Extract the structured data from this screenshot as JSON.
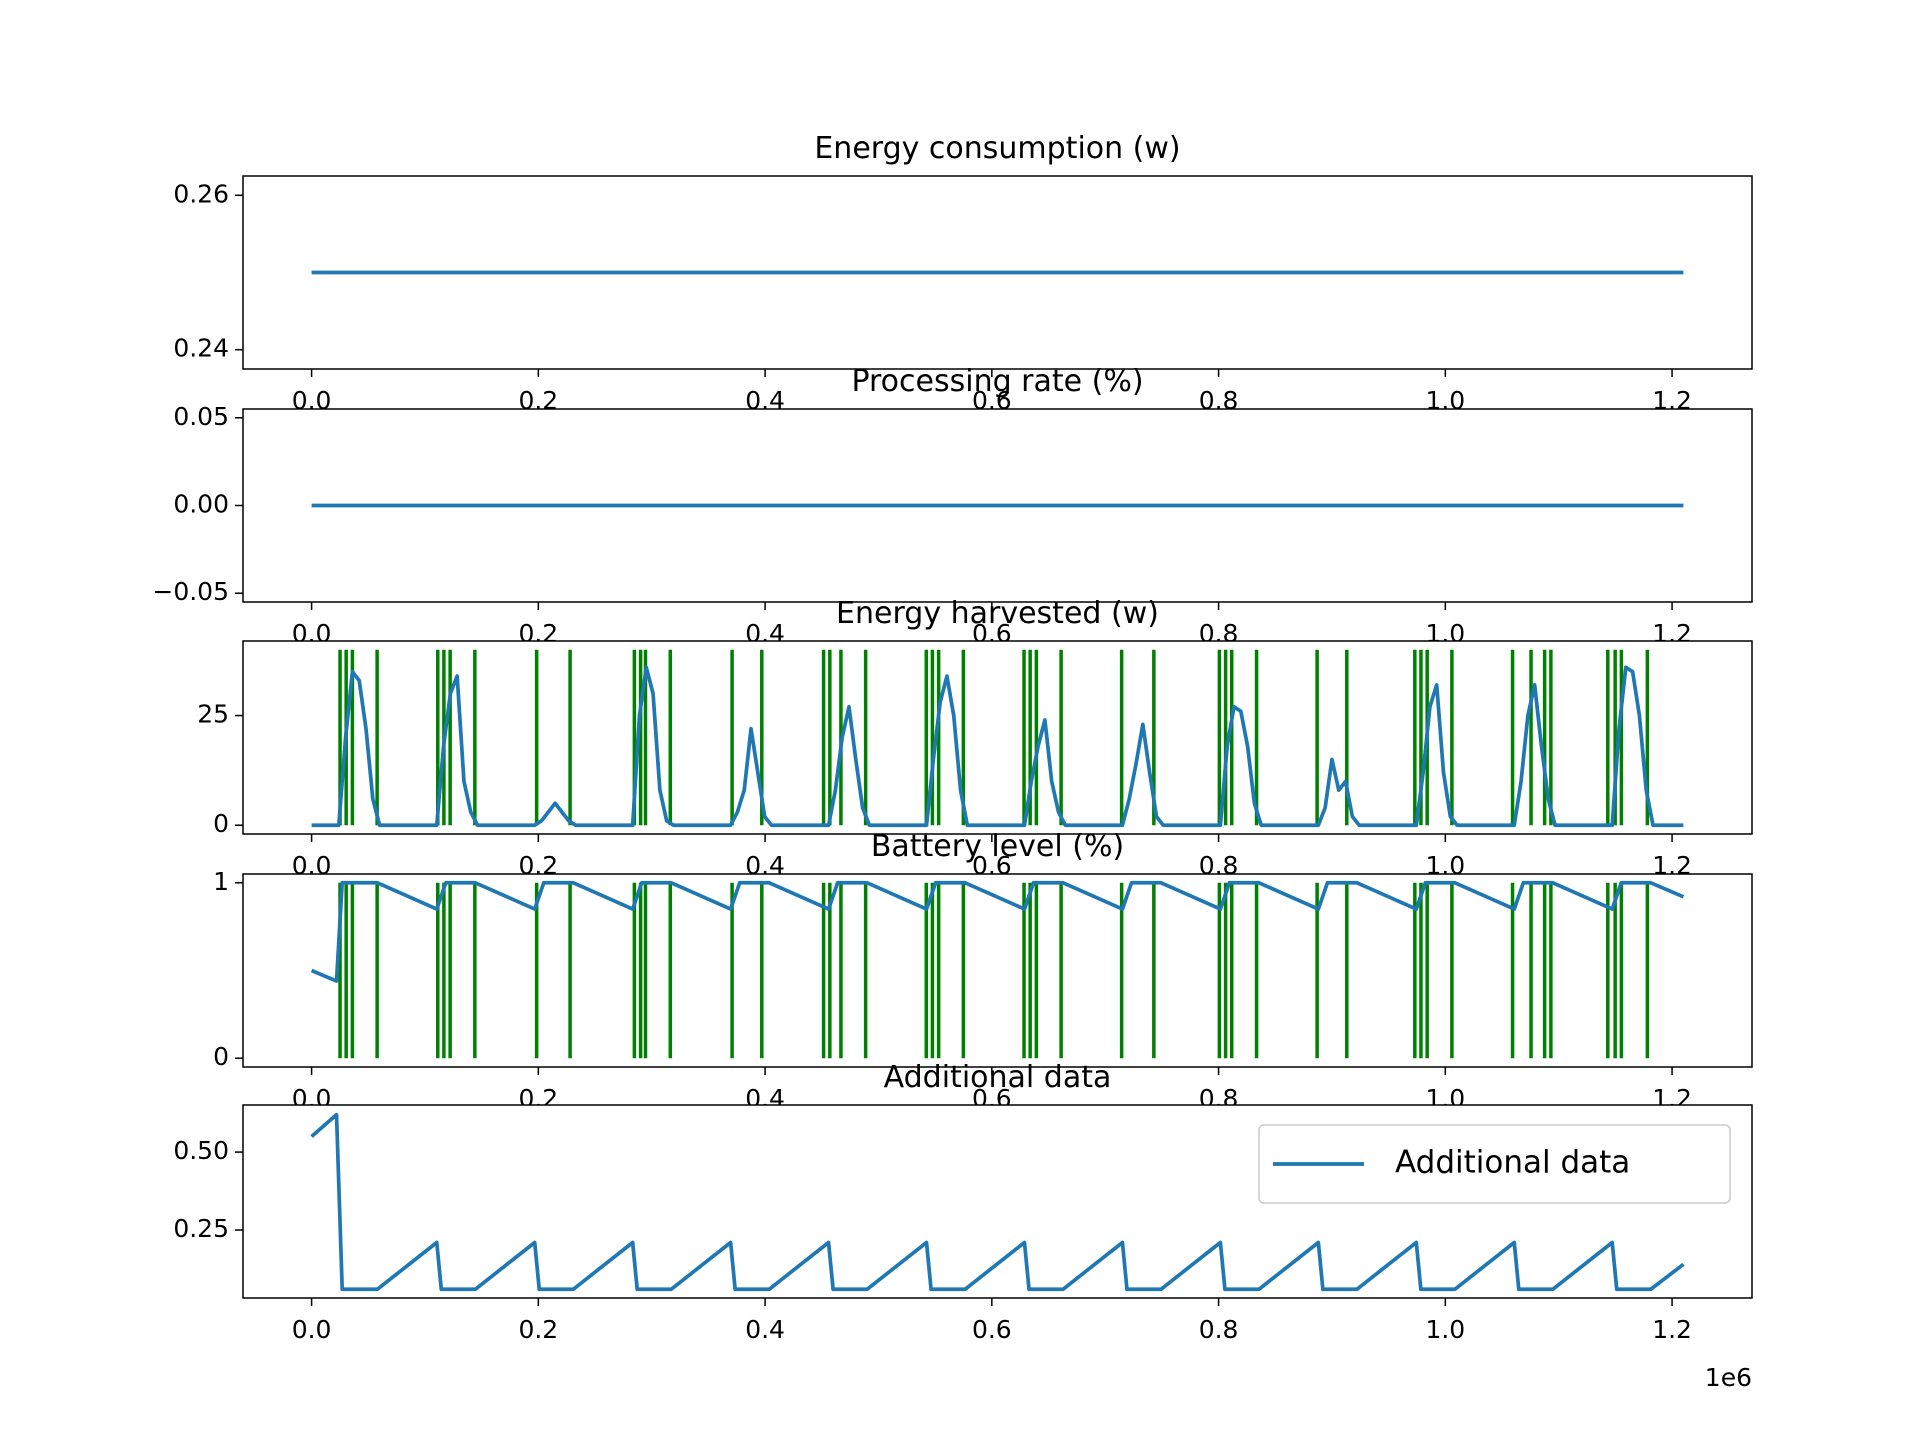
{
  "chart_data": [
    {
      "type": "line",
      "title": "Energy consumption (w)",
      "x": [
        0,
        1210000
      ],
      "xlim": [
        -60500,
        1270500
      ],
      "xticks": [
        {
          "value": 0,
          "label": "0.0"
        },
        {
          "value": 200000,
          "label": "0.2"
        },
        {
          "value": 400000,
          "label": "0.4"
        },
        {
          "value": 600000,
          "label": "0.6"
        },
        {
          "value": 800000,
          "label": "0.8"
        },
        {
          "value": 1000000,
          "label": "1.0"
        },
        {
          "value": 1200000,
          "label": "1.2"
        }
      ],
      "ylim": [
        0.2375,
        0.2625
      ],
      "yticks": [
        0.24,
        0.26
      ],
      "series": [
        {
          "color": "#1f77b4",
          "values": [
            0.25,
            0.25
          ]
        }
      ]
    },
    {
      "type": "line",
      "title": "Processing rate (%)",
      "x": [
        0,
        1210000
      ],
      "xlim": [
        -60500,
        1270500
      ],
      "xticks": [
        {
          "value": 0,
          "label": "0.0"
        },
        {
          "value": 200000,
          "label": "0.2"
        },
        {
          "value": 400000,
          "label": "0.4"
        },
        {
          "value": 600000,
          "label": "0.6"
        },
        {
          "value": 800000,
          "label": "0.8"
        },
        {
          "value": 1000000,
          "label": "1.0"
        },
        {
          "value": 1200000,
          "label": "1.2"
        }
      ],
      "ylim": [
        -0.055,
        0.055
      ],
      "yticks": [
        {
          "value": -0.05,
          "label": "−0.05"
        },
        {
          "value": 0,
          "label": "0.00"
        },
        0.05
      ],
      "series": [
        {
          "color": "#1f77b4",
          "values": [
            0,
            0
          ]
        }
      ]
    },
    {
      "type": "line",
      "title": "Energy harvested (w)",
      "x": [
        0,
        24000,
        30000,
        36000,
        42000,
        48000,
        54000,
        60000,
        110400,
        116400,
        122400,
        128400,
        134400,
        140400,
        146400,
        196800,
        202800,
        208800,
        214800,
        220800,
        226800,
        232800,
        283200,
        289200,
        295200,
        301200,
        307200,
        313200,
        319200,
        369600,
        375600,
        381600,
        387600,
        393600,
        399600,
        405600,
        456000,
        462000,
        468000,
        474000,
        480000,
        486000,
        492000,
        542400,
        548400,
        554400,
        560400,
        566400,
        572400,
        578400,
        628800,
        634800,
        640800,
        646800,
        652800,
        658800,
        664800,
        715200,
        721200,
        727200,
        733200,
        739200,
        745200,
        751200,
        801600,
        807600,
        813600,
        819600,
        825600,
        831600,
        837600,
        888000,
        894000,
        900000,
        906000,
        912000,
        918000,
        924000,
        974400,
        980400,
        986400,
        992400,
        998400,
        1004400,
        1010400,
        1060800,
        1066800,
        1072800,
        1078800,
        1084800,
        1090800,
        1096800,
        1147200,
        1153200,
        1159200,
        1165200,
        1171200,
        1177200,
        1183200,
        1210000
      ],
      "xlim": [
        -60500,
        1270500
      ],
      "xticks": [
        {
          "value": 0,
          "label": "0.0"
        },
        {
          "value": 200000,
          "label": "0.2"
        },
        {
          "value": 400000,
          "label": "0.4"
        },
        {
          "value": 600000,
          "label": "0.6"
        },
        {
          "value": 800000,
          "label": "0.8"
        },
        {
          "value": 1000000,
          "label": "1.0"
        },
        {
          "value": 1200000,
          "label": "1.2"
        }
      ],
      "ylim": [
        -2,
        42
      ],
      "yticks": [
        0,
        25
      ],
      "series": [
        {
          "color": "#1f77b4",
          "values": [
            0,
            0,
            20,
            35,
            33,
            22,
            6,
            0,
            0,
            18,
            30,
            34,
            10,
            3,
            0,
            0,
            1,
            3,
            5,
            3,
            1,
            0,
            0,
            25,
            36,
            30,
            8,
            1,
            0,
            0,
            3,
            8,
            22,
            12,
            2,
            0,
            0,
            8,
            20,
            27,
            15,
            4,
            0,
            0,
            15,
            28,
            34,
            25,
            8,
            0,
            0,
            10,
            18,
            24,
            10,
            3,
            0,
            0,
            6,
            14,
            23,
            12,
            2,
            0,
            0,
            18,
            27,
            26,
            18,
            5,
            0,
            0,
            4,
            15,
            8,
            10,
            2,
            0,
            0,
            12,
            27,
            32,
            12,
            2,
            0,
            0,
            10,
            25,
            32,
            18,
            6,
            0,
            0,
            22,
            36,
            35,
            25,
            8,
            0,
            0
          ]
        }
      ],
      "vlines": {
        "color": "green",
        "ymin": 0,
        "ymax": 40,
        "x": [
          25100,
          30500,
          36000,
          57800,
          111300,
          116700,
          122200,
          144000,
          198500,
          228000,
          284700,
          290200,
          294500,
          316400,
          370900,
          397100,
          451600,
          457100,
          466900,
          488700,
          542200,
          547600,
          553100,
          574900,
          628400,
          633800,
          639300,
          661100,
          714500,
          742900,
          800700,
          806200,
          811600,
          833500,
          886900,
          913100,
          973100,
          978500,
          984000,
          1005800,
          1059300,
          1075600,
          1087600,
          1093100,
          1143300,
          1149800,
          1155300,
          1178200
        ]
      }
    },
    {
      "type": "line",
      "title": "Battery level (%)",
      "x": [
        0,
        22000,
        27000,
        58000,
        110400,
        118400,
        144400,
        196800,
        204800,
        230800,
        283200,
        291200,
        317200,
        369600,
        377600,
        403600,
        456000,
        464000,
        490000,
        542400,
        550400,
        576400,
        628800,
        636800,
        662800,
        715200,
        723200,
        749200,
        801600,
        809600,
        835600,
        888000,
        896000,
        922000,
        974400,
        982400,
        1008400,
        1060800,
        1068800,
        1094800,
        1147200,
        1155200,
        1181200,
        1210000
      ],
      "xlim": [
        -60500,
        1270500
      ],
      "xticks": [
        {
          "value": 0,
          "label": "0.0"
        },
        {
          "value": 200000,
          "label": "0.2"
        },
        {
          "value": 400000,
          "label": "0.4"
        },
        {
          "value": 600000,
          "label": "0.6"
        },
        {
          "value": 800000,
          "label": "0.8"
        },
        {
          "value": 1000000,
          "label": "1.0"
        },
        {
          "value": 1200000,
          "label": "1.2"
        }
      ],
      "ylim": [
        -0.05,
        1.05
      ],
      "yticks": [
        0,
        1
      ],
      "series": [
        {
          "color": "#1f77b4",
          "values": [
            0.5,
            0.44,
            1,
            1,
            0.85,
            1,
            1,
            0.85,
            1,
            1,
            0.85,
            1,
            1,
            0.85,
            1,
            1,
            0.85,
            1,
            1,
            0.85,
            1,
            1,
            0.85,
            1,
            1,
            0.85,
            1,
            1,
            0.85,
            1,
            1,
            0.85,
            1,
            1,
            0.85,
            1,
            1,
            0.85,
            1,
            1,
            0.85,
            1,
            1,
            0.92
          ]
        }
      ],
      "vlines": {
        "color": "green",
        "ymin": 0,
        "ymax": 1,
        "x": [
          25100,
          30500,
          36000,
          57800,
          111300,
          116700,
          122200,
          144000,
          198500,
          228000,
          284700,
          290200,
          294500,
          316400,
          370900,
          397100,
          451600,
          457100,
          466900,
          488700,
          542200,
          547600,
          553100,
          574900,
          628400,
          633800,
          639300,
          661100,
          714500,
          742900,
          800700,
          806200,
          811600,
          833500,
          886900,
          913100,
          973100,
          978500,
          984000,
          1005800,
          1059300,
          1075600,
          1087600,
          1093100,
          1143300,
          1149800,
          1155300,
          1178200
        ]
      }
    },
    {
      "type": "line",
      "title": "Additional data",
      "x": [
        0,
        22000,
        27000,
        58000,
        110400,
        114400,
        144400,
        196800,
        200800,
        230800,
        283200,
        287200,
        317200,
        369600,
        373600,
        403600,
        456000,
        460000,
        490000,
        542400,
        546400,
        576400,
        628800,
        632800,
        662800,
        715200,
        719200,
        749200,
        801600,
        805600,
        835600,
        888000,
        892000,
        922000,
        974400,
        978400,
        1008400,
        1060800,
        1064800,
        1094800,
        1147200,
        1151200,
        1181200,
        1210000
      ],
      "xlim": [
        -60500,
        1270500
      ],
      "xticks": [
        {
          "value": 0,
          "label": "0.0"
        },
        {
          "value": 200000,
          "label": "0.2"
        },
        {
          "value": 400000,
          "label": "0.4"
        },
        {
          "value": 600000,
          "label": "0.6"
        },
        {
          "value": 800000,
          "label": "0.8"
        },
        {
          "value": 1000000,
          "label": "1.0"
        },
        {
          "value": 1200000,
          "label": "1.2"
        }
      ],
      "xaxis_offset": "1e6",
      "ylim": [
        0.032,
        0.651
      ],
      "yticks": [
        0.25,
        {
          "value": 0.5,
          "label": "0.50"
        }
      ],
      "legend": "upper right",
      "series": [
        {
          "name": "Additional data",
          "color": "#1f77b4",
          "values": [
            0.55,
            0.62,
            0.06,
            0.06,
            0.21,
            0.06,
            0.06,
            0.21,
            0.06,
            0.06,
            0.21,
            0.06,
            0.06,
            0.21,
            0.06,
            0.06,
            0.21,
            0.06,
            0.06,
            0.21,
            0.06,
            0.06,
            0.21,
            0.06,
            0.06,
            0.21,
            0.06,
            0.06,
            0.21,
            0.06,
            0.06,
            0.21,
            0.06,
            0.06,
            0.21,
            0.06,
            0.06,
            0.21,
            0.06,
            0.06,
            0.21,
            0.06,
            0.06,
            0.14
          ]
        }
      ]
    }
  ]
}
